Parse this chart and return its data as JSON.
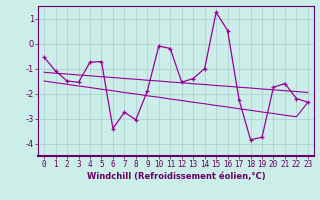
{
  "xlabel": "Windchill (Refroidissement éolien,°C)",
  "x": [
    0,
    1,
    2,
    3,
    4,
    5,
    6,
    7,
    8,
    9,
    10,
    11,
    12,
    13,
    14,
    15,
    16,
    17,
    18,
    19,
    20,
    21,
    22,
    23
  ],
  "y_main": [
    -0.55,
    -1.1,
    -1.5,
    -1.55,
    -0.75,
    -0.72,
    -3.4,
    -2.75,
    -3.05,
    -1.9,
    -0.1,
    -0.2,
    -1.55,
    -1.4,
    -1.0,
    1.25,
    0.52,
    -2.25,
    -3.85,
    -3.75,
    -1.75,
    -1.6,
    -2.2,
    -2.35
  ],
  "y_trend1": [
    -1.15,
    -1.19,
    -1.22,
    -1.26,
    -1.29,
    -1.33,
    -1.36,
    -1.4,
    -1.43,
    -1.47,
    -1.5,
    -1.54,
    -1.57,
    -1.61,
    -1.64,
    -1.68,
    -1.71,
    -1.75,
    -1.78,
    -1.82,
    -1.85,
    -1.89,
    -1.92,
    -1.96
  ],
  "y_trend2": [
    -1.5,
    -1.57,
    -1.63,
    -1.7,
    -1.76,
    -1.83,
    -1.89,
    -1.96,
    -2.02,
    -2.09,
    -2.15,
    -2.22,
    -2.28,
    -2.35,
    -2.41,
    -2.48,
    -2.54,
    -2.61,
    -2.67,
    -2.74,
    -2.8,
    -2.87,
    -2.93,
    -2.35
  ],
  "line_color": "#990099",
  "bg_color": "#cceee8",
  "grid_color": "#aacccc",
  "axis_line_color": "#660066",
  "ylim": [
    -4.5,
    1.5
  ],
  "xlim": [
    -0.5,
    23.5
  ],
  "yticks": [
    -4,
    -3,
    -2,
    -1,
    0,
    1
  ],
  "xticks": [
    0,
    1,
    2,
    3,
    4,
    5,
    6,
    7,
    8,
    9,
    10,
    11,
    12,
    13,
    14,
    15,
    16,
    17,
    18,
    19,
    20,
    21,
    22,
    23
  ],
  "tick_label_color": "#660066",
  "xlabel_color": "#660066",
  "tick_fontsize": 5.5,
  "xlabel_fontsize": 6.0
}
